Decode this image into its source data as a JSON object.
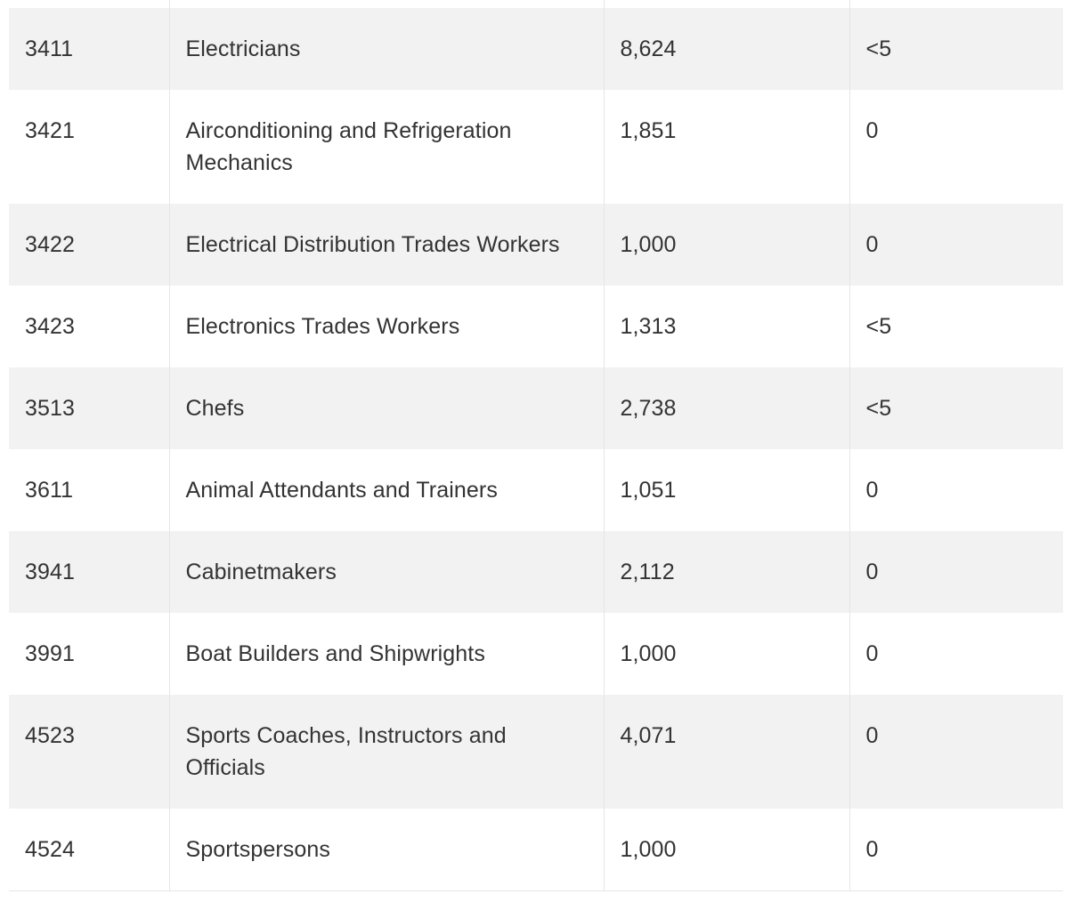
{
  "table": {
    "rows": [
      {
        "code": "3411",
        "occupation": "Electricians",
        "value": "8,624",
        "flag": "<5"
      },
      {
        "code": "3421",
        "occupation": "Airconditioning and Refrigeration Mechanics",
        "value": "1,851",
        "flag": "0"
      },
      {
        "code": "3422",
        "occupation": "Electrical Distribution Trades Workers",
        "value": "1,000",
        "flag": "0"
      },
      {
        "code": "3423",
        "occupation": "Electronics Trades Workers",
        "value": "1,313",
        "flag": "<5"
      },
      {
        "code": "3513",
        "occupation": "Chefs",
        "value": "2,738",
        "flag": "<5"
      },
      {
        "code": "3611",
        "occupation": "Animal Attendants and Trainers",
        "value": "1,051",
        "flag": "0"
      },
      {
        "code": "3941",
        "occupation": "Cabinetmakers",
        "value": "2,112",
        "flag": "0"
      },
      {
        "code": "3991",
        "occupation": "Boat Builders and Shipwrights",
        "value": "1,000",
        "flag": "0"
      },
      {
        "code": "4523",
        "occupation": "Sports Coaches, Instructors and Officials",
        "value": "4,071",
        "flag": "0"
      },
      {
        "code": "4524",
        "occupation": "Sportspersons",
        "value": "1,000",
        "flag": "0"
      }
    ]
  }
}
